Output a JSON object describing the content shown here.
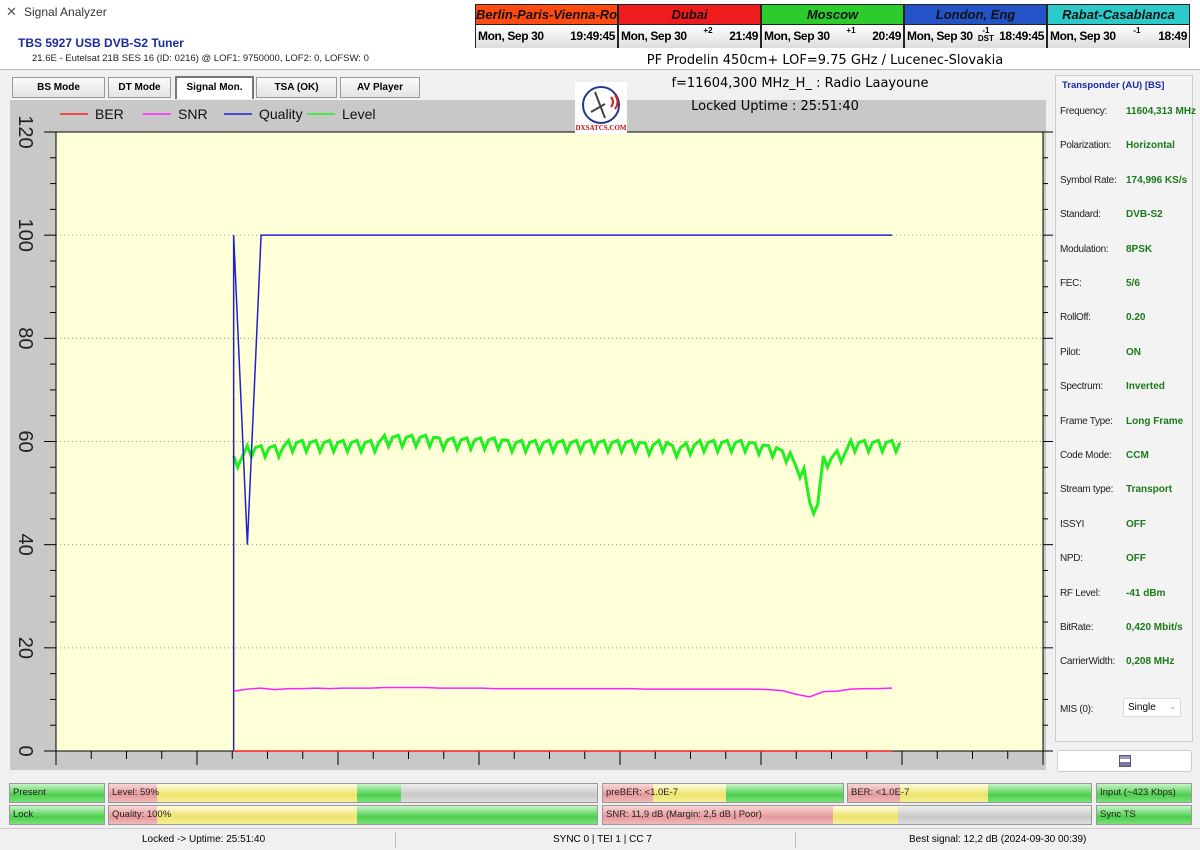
{
  "window": {
    "title": "Signal Analyzer"
  },
  "tuner": {
    "name": "TBS 5927 USB DVB-S2 Tuner",
    "info": "21.6E - Eutelsat 21B  SES 16 (ID: 0216) @ LOF1: 9750000, LOF2: 0, LOFSW: 0"
  },
  "clocks": [
    {
      "city": "Berlin-Paris-Vienna-Roma",
      "date": "Mon, Sep 30",
      "offset": "",
      "time": "19:49:45",
      "color": "#ff4a10"
    },
    {
      "city": "Dubai",
      "date": "Mon, Sep 30",
      "offset": "+2",
      "time": "21:49",
      "color": "#ee1c1c"
    },
    {
      "city": "Moscow",
      "date": "Mon, Sep 30",
      "offset": "+1",
      "time": "20:49",
      "color": "#2ccc2c"
    },
    {
      "city": "London, Eng",
      "date": "Mon, Sep 30",
      "offset": "-1 DST",
      "time": "18:49:45",
      "color": "#2453c8"
    },
    {
      "city": "Rabat-Casablanca",
      "date": "Mon, Sep 30",
      "offset": "-1",
      "time": "18:49",
      "color": "#2ccaca"
    }
  ],
  "station_line": "PF Prodelin 450cm+ LOF=9.75 GHz / Lucenec-Slovakia",
  "tabs": [
    {
      "label": "BS Mode"
    },
    {
      "label": "DT Mode"
    },
    {
      "label": "Signal Mon.",
      "active": true
    },
    {
      "label": "TSA (OK)"
    },
    {
      "label": "AV Player"
    }
  ],
  "logo_text": "DXSATCS.COM",
  "channel_line": "f=11604,300 MHz_H_ : Radio Laayoune",
  "uptime_line": "Locked Uptime : 25:51:40",
  "chart_data": {
    "type": "line",
    "title": "",
    "xlabel": "",
    "ylabel": "",
    "ylim": [
      0,
      120
    ],
    "yticks": [
      0,
      20,
      40,
      60,
      80,
      100,
      120
    ],
    "grid": true,
    "legend": "top-left",
    "background": "#ffffd8",
    "series": [
      {
        "name": "BER",
        "color": "#ff2020",
        "values": [
          0,
          0,
          0,
          0,
          0,
          0,
          0,
          0,
          0,
          0,
          0,
          0,
          0,
          0,
          0,
          0,
          0,
          0,
          0,
          0,
          0,
          0,
          0,
          0,
          0,
          0,
          0,
          0,
          0,
          0,
          0,
          0,
          0,
          0,
          0,
          0,
          0,
          0,
          0,
          0,
          0,
          0,
          0,
          0,
          0,
          0,
          0,
          0,
          0
        ]
      },
      {
        "name": "SNR",
        "color": "#ff20ff",
        "values": [
          11.6,
          12,
          12.2,
          11.9,
          12.1,
          12.1,
          12.2,
          12.1,
          12.2,
          12.2,
          12.2,
          12.3,
          12.3,
          12.3,
          12.3,
          12.2,
          12.2,
          12.2,
          12.2,
          12.1,
          12.1,
          12.1,
          12.1,
          12.1,
          12.1,
          12.1,
          12.1,
          12.1,
          12.1,
          12.1,
          12,
          12,
          12,
          12,
          12,
          12,
          12,
          12,
          12,
          11.9,
          11.7,
          11,
          10.5,
          11.5,
          11.6,
          12,
          12.1,
          12.1,
          12.2
        ]
      },
      {
        "name": "Quality",
        "color": "#2020d0",
        "values": [
          100,
          40,
          100,
          100,
          100,
          100,
          100,
          100,
          100,
          100,
          100,
          100,
          100,
          100,
          100,
          100,
          100,
          100,
          100,
          100,
          100,
          100,
          100,
          100,
          100,
          100,
          100,
          100,
          100,
          100,
          100,
          100,
          100,
          100,
          100,
          100,
          100,
          100,
          100,
          100,
          100,
          100,
          100,
          100,
          100,
          100,
          100,
          100,
          100
        ]
      },
      {
        "name": "Level",
        "color": "#20f020",
        "values": [
          56,
          58,
          58,
          58,
          59,
          59,
          59,
          59,
          59,
          59,
          59,
          60,
          60,
          60,
          60,
          59.5,
          59.5,
          59.5,
          59.5,
          59.5,
          59,
          59,
          59,
          59,
          59,
          59,
          59,
          59,
          59,
          59,
          58.5,
          59,
          58,
          58.5,
          59,
          59,
          59,
          59,
          58.5,
          58,
          57,
          54,
          47,
          56,
          57,
          59,
          59,
          59,
          59
        ]
      }
    ]
  },
  "transponder": {
    "title": "Transponder (AU) [BS]",
    "rows": [
      {
        "label": "Frequency:",
        "value": "11604,313 MHz"
      },
      {
        "label": "Polarization:",
        "value": "Horizontal"
      },
      {
        "label": "Symbol Rate:",
        "value": "174,996 KS/s"
      },
      {
        "label": "Standard:",
        "value": "DVB-S2"
      },
      {
        "label": "Modulation:",
        "value": "8PSK"
      },
      {
        "label": "FEC:",
        "value": "5/6"
      },
      {
        "label": "RollOff:",
        "value": "0.20"
      },
      {
        "label": "Pilot:",
        "value": "ON"
      },
      {
        "label": "Spectrum:",
        "value": "Inverted"
      },
      {
        "label": "Frame Type:",
        "value": "Long Frame"
      },
      {
        "label": "Code Mode:",
        "value": "CCM"
      },
      {
        "label": "Stream type:",
        "value": "Transport"
      },
      {
        "label": "ISSYI",
        "value": "OFF"
      },
      {
        "label": "NPD:",
        "value": "OFF"
      },
      {
        "label": "RF Level:",
        "value": "-41 dBm"
      },
      {
        "label": "BitRate:",
        "value": "0,420 Mbit/s"
      },
      {
        "label": "CarrierWidth:",
        "value": "0,208 MHz"
      }
    ],
    "mis_label": "MIS (0):",
    "mis_value": "Single"
  },
  "indicators": {
    "present": "Present",
    "lock": "Lock",
    "level": {
      "label": "Level: 59%",
      "percent": 59
    },
    "quality": {
      "label": "Quality: 100%",
      "percent": 100
    },
    "preber": "preBER: <1.0E-7",
    "ber": "BER: <1.0E-7",
    "snr": {
      "label": "SNR: 11,9 dB (Margin: 2,5 dB | Poor)"
    },
    "input": "Input (~423 Kbps)",
    "sync": "Sync TS"
  },
  "status": {
    "uptime": "Locked -> Uptime: 25:51:40",
    "sync": "SYNC 0 | TEI 1 | CC 7",
    "best": "Best signal: 12,2 dB (2024-09-30 00:39)"
  }
}
